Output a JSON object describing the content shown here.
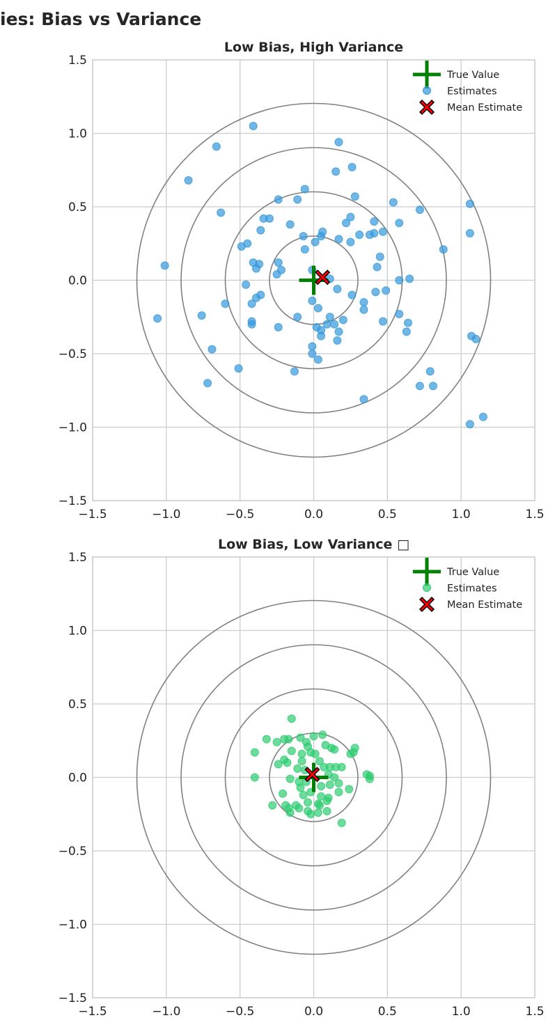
{
  "suptitle": "ies: Bias vs Variance",
  "chart_data": [
    {
      "type": "scatter",
      "title": "Low Bias, High Variance",
      "xlim": [
        -1.5,
        1.5
      ],
      "ylim": [
        -1.5,
        1.5
      ],
      "ticks": [
        -1.5,
        -1.0,
        -0.5,
        0.0,
        0.5,
        1.0,
        1.5
      ],
      "tick_labels": [
        "−1.5",
        "−1.0",
        "−0.5",
        "0.0",
        "0.5",
        "1.0",
        "1.5"
      ],
      "grid": true,
      "target_rings": [
        0.3,
        0.6,
        0.9,
        1.2
      ],
      "ring_color": "#808080",
      "legend_placement": "top-right",
      "legend": [
        "True Value",
        "Estimates",
        "Mean Estimate"
      ],
      "true_value": [
        0,
        0
      ],
      "true_color": "#008000",
      "estimate_color": "#3498db",
      "mean_color": "#ff0000",
      "mean_estimate": [
        0.06,
        0.02
      ],
      "points": [
        [
          -0.41,
          1.05
        ],
        [
          0.17,
          0.94
        ],
        [
          -0.66,
          0.91
        ],
        [
          0.26,
          0.77
        ],
        [
          0.15,
          0.74
        ],
        [
          -0.85,
          0.68
        ],
        [
          -0.06,
          0.62
        ],
        [
          0.28,
          0.57
        ],
        [
          -0.24,
          0.55
        ],
        [
          -0.11,
          0.55
        ],
        [
          0.54,
          0.53
        ],
        [
          1.06,
          0.52
        ],
        [
          0.72,
          0.48
        ],
        [
          -0.63,
          0.46
        ],
        [
          0.25,
          0.43
        ],
        [
          -0.34,
          0.42
        ],
        [
          -0.3,
          0.42
        ],
        [
          0.41,
          0.4
        ],
        [
          0.58,
          0.39
        ],
        [
          0.22,
          0.39
        ],
        [
          -0.16,
          0.38
        ],
        [
          -0.36,
          0.34
        ],
        [
          0.06,
          0.33
        ],
        [
          0.47,
          0.33
        ],
        [
          1.06,
          0.32
        ],
        [
          0.41,
          0.32
        ],
        [
          0.38,
          0.31
        ],
        [
          0.31,
          0.31
        ],
        [
          0.05,
          0.3
        ],
        [
          -0.07,
          0.3
        ],
        [
          0.17,
          0.28
        ],
        [
          0.25,
          0.26
        ],
        [
          0.01,
          0.26
        ],
        [
          -0.45,
          0.25
        ],
        [
          -0.49,
          0.23
        ],
        [
          -0.06,
          0.21
        ],
        [
          0.88,
          0.21
        ],
        [
          0.45,
          0.16
        ],
        [
          -0.41,
          0.12
        ],
        [
          -0.24,
          0.12
        ],
        [
          -0.37,
          0.11
        ],
        [
          -1.01,
          0.1
        ],
        [
          0.43,
          0.09
        ],
        [
          -0.39,
          0.08
        ],
        [
          -0.22,
          0.07
        ],
        [
          -0.01,
          0.07
        ],
        [
          -0.25,
          0.04
        ],
        [
          0.11,
          0.01
        ],
        [
          0.65,
          0.01
        ],
        [
          0.58,
          0.0
        ],
        [
          -0.46,
          -0.03
        ],
        [
          0.16,
          -0.06
        ],
        [
          0.42,
          -0.08
        ],
        [
          0.49,
          -0.07
        ],
        [
          0.26,
          -0.1
        ],
        [
          -0.36,
          -0.1
        ],
        [
          -0.39,
          -0.12
        ],
        [
          -0.6,
          -0.16
        ],
        [
          0.34,
          -0.15
        ],
        [
          -0.42,
          -0.16
        ],
        [
          -0.01,
          -0.14
        ],
        [
          0.03,
          -0.19
        ],
        [
          0.34,
          -0.2
        ],
        [
          0.58,
          -0.23
        ],
        [
          -0.11,
          -0.25
        ],
        [
          -1.06,
          -0.26
        ],
        [
          -0.76,
          -0.24
        ],
        [
          0.11,
          -0.25
        ],
        [
          0.2,
          -0.27
        ],
        [
          -0.42,
          -0.28
        ],
        [
          -0.42,
          -0.3
        ],
        [
          0.64,
          -0.29
        ],
        [
          0.47,
          -0.28
        ],
        [
          0.09,
          -0.3
        ],
        [
          0.14,
          -0.3
        ],
        [
          -0.24,
          -0.32
        ],
        [
          0.02,
          -0.32
        ],
        [
          0.05,
          -0.34
        ],
        [
          0.17,
          -0.35
        ],
        [
          0.63,
          -0.35
        ],
        [
          0.05,
          -0.38
        ],
        [
          1.07,
          -0.38
        ],
        [
          1.1,
          -0.4
        ],
        [
          0.16,
          -0.41
        ],
        [
          -0.01,
          -0.45
        ],
        [
          -0.69,
          -0.47
        ],
        [
          -0.01,
          -0.5
        ],
        [
          0.03,
          -0.54
        ],
        [
          -0.51,
          -0.6
        ],
        [
          0.79,
          -0.62
        ],
        [
          -0.13,
          -0.62
        ],
        [
          -0.72,
          -0.7
        ],
        [
          0.72,
          -0.72
        ],
        [
          0.81,
          -0.72
        ],
        [
          0.34,
          -0.81
        ],
        [
          1.15,
          -0.93
        ],
        [
          1.06,
          -0.98
        ]
      ]
    },
    {
      "type": "scatter",
      "title": "Low Bias, Low Variance □",
      "xlim": [
        -1.5,
        1.5
      ],
      "ylim": [
        -1.5,
        1.5
      ],
      "ticks": [
        -1.5,
        -1.0,
        -0.5,
        0.0,
        0.5,
        1.0,
        1.5
      ],
      "tick_labels": [
        "−1.5",
        "−1.0",
        "−0.5",
        "0.0",
        "0.5",
        "1.0",
        "1.5"
      ],
      "grid": true,
      "target_rings": [
        0.3,
        0.6,
        0.9,
        1.2
      ],
      "ring_color": "#808080",
      "legend_placement": "top-right",
      "legend": [
        "True Value",
        "Estimates",
        "Mean Estimate"
      ],
      "true_value": [
        0,
        0
      ],
      "true_color": "#008000",
      "estimate_color": "#2ecc71",
      "mean_color": "#ff0000",
      "mean_estimate": [
        -0.01,
        0.02
      ],
      "points": [
        [
          -0.15,
          0.4
        ],
        [
          0.06,
          0.29
        ],
        [
          0.0,
          0.28
        ],
        [
          -0.32,
          0.26
        ],
        [
          -0.2,
          0.26
        ],
        [
          -0.17,
          0.26
        ],
        [
          -0.09,
          0.27
        ],
        [
          -0.05,
          0.24
        ],
        [
          -0.04,
          0.21
        ],
        [
          0.08,
          0.22
        ],
        [
          -0.25,
          0.24
        ],
        [
          0.28,
          0.2
        ],
        [
          0.12,
          0.2
        ],
        [
          0.14,
          0.19
        ],
        [
          -0.4,
          0.17
        ],
        [
          -0.15,
          0.18
        ],
        [
          -0.08,
          0.16
        ],
        [
          -0.02,
          0.17
        ],
        [
          0.01,
          0.16
        ],
        [
          0.25,
          0.16
        ],
        [
          0.27,
          0.17
        ],
        [
          -0.2,
          0.12
        ],
        [
          -0.18,
          0.1
        ],
        [
          -0.24,
          0.09
        ],
        [
          -0.08,
          0.11
        ],
        [
          0.04,
          0.11
        ],
        [
          0.11,
          0.07
        ],
        [
          0.15,
          0.07
        ],
        [
          0.19,
          0.07
        ],
        [
          0.07,
          0.07
        ],
        [
          -0.11,
          0.06
        ],
        [
          -0.06,
          0.05
        ],
        [
          0.1,
          0.02
        ],
        [
          0.36,
          0.02
        ],
        [
          0.38,
          0.01
        ],
        [
          -0.4,
          0.0
        ],
        [
          0.38,
          -0.01
        ],
        [
          -0.16,
          -0.01
        ],
        [
          -0.1,
          -0.03
        ],
        [
          -0.05,
          -0.03
        ],
        [
          0.14,
          0.0
        ],
        [
          0.17,
          -0.04
        ],
        [
          0.11,
          -0.05
        ],
        [
          0.05,
          -0.06
        ],
        [
          -0.09,
          -0.07
        ],
        [
          0.24,
          -0.08
        ],
        [
          -0.02,
          -0.1
        ],
        [
          0.17,
          -0.1
        ],
        [
          -0.21,
          -0.11
        ],
        [
          -0.07,
          -0.12
        ],
        [
          0.05,
          -0.13
        ],
        [
          0.1,
          -0.14
        ],
        [
          0.09,
          -0.16
        ],
        [
          -0.04,
          -0.17
        ],
        [
          0.03,
          -0.18
        ],
        [
          0.04,
          -0.19
        ],
        [
          -0.19,
          -0.19
        ],
        [
          -0.28,
          -0.19
        ],
        [
          -0.12,
          -0.19
        ],
        [
          -0.1,
          -0.21
        ],
        [
          -0.17,
          -0.21
        ],
        [
          -0.04,
          -0.23
        ],
        [
          0.09,
          -0.23
        ],
        [
          -0.16,
          -0.24
        ],
        [
          -0.02,
          -0.25
        ],
        [
          0.03,
          -0.24
        ],
        [
          0.19,
          -0.31
        ]
      ]
    }
  ]
}
